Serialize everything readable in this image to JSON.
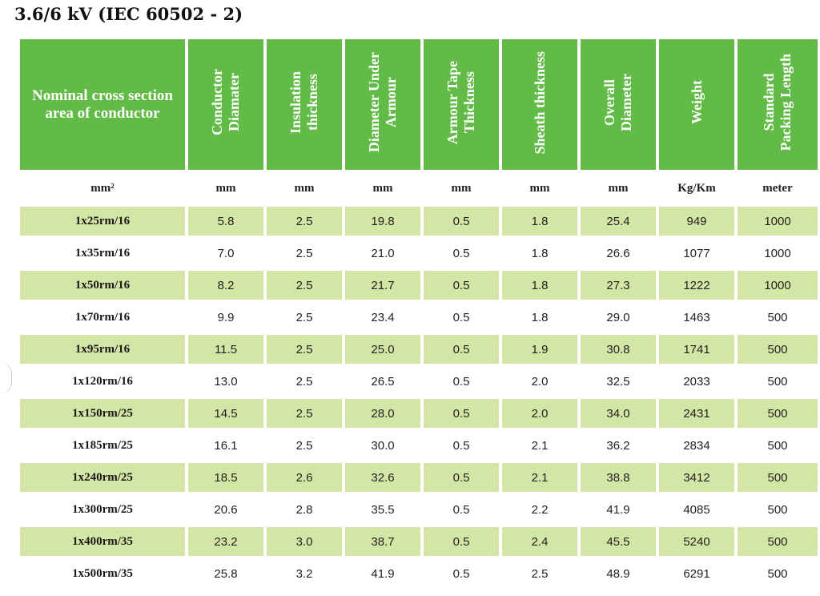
{
  "title": "3.6/6 kV (IEC 60502 - 2)",
  "table": {
    "headers": [
      "Nominal cross section area of conductor",
      "Conductor\nDiamater",
      "Insulation\nthickness",
      "Diameter Under\nArmour",
      "Armour Tape\nThickness",
      "Sheath thickness",
      "Overall\nDiameter",
      "Weight",
      "Standard\nPacking Length"
    ],
    "units": [
      "mm²",
      "mm",
      "mm",
      "mm",
      "mm",
      "mm",
      "mm",
      "Kg/Km",
      "meter"
    ],
    "rows": [
      [
        "1x25rm/16",
        "5.8",
        "2.5",
        "19.8",
        "0.5",
        "1.8",
        "25.4",
        "949",
        "1000"
      ],
      [
        "1x35rm/16",
        "7.0",
        "2.5",
        "21.0",
        "0.5",
        "1.8",
        "26.6",
        "1077",
        "1000"
      ],
      [
        "1x50rm/16",
        "8.2",
        "2.5",
        "21.7",
        "0.5",
        "1.8",
        "27.3",
        "1222",
        "1000"
      ],
      [
        "1x70rm/16",
        "9.9",
        "2.5",
        "23.4",
        "0.5",
        "1.8",
        "29.0",
        "1463",
        "500"
      ],
      [
        "1x95rm/16",
        "11.5",
        "2.5",
        "25.0",
        "0.5",
        "1.9",
        "30.8",
        "1741",
        "500"
      ],
      [
        "1x120rm/16",
        "13.0",
        "2.5",
        "26.5",
        "0.5",
        "2.0",
        "32.5",
        "2033",
        "500"
      ],
      [
        "1x150rm/25",
        "14.5",
        "2.5",
        "28.0",
        "0.5",
        "2.0",
        "34.0",
        "2431",
        "500"
      ],
      [
        "1x185rm/25",
        "16.1",
        "2.5",
        "30.0",
        "0.5",
        "2.1",
        "36.2",
        "2834",
        "500"
      ],
      [
        "1x240rm/25",
        "18.5",
        "2.6",
        "32.6",
        "0.5",
        "2.1",
        "38.8",
        "3412",
        "500"
      ],
      [
        "1x300rm/25",
        "20.6",
        "2.8",
        "35.5",
        "0.5",
        "2.2",
        "41.9",
        "4085",
        "500"
      ],
      [
        "1x400rm/35",
        "23.2",
        "3.0",
        "38.7",
        "0.5",
        "2.4",
        "45.5",
        "5240",
        "500"
      ],
      [
        "1x500rm/35",
        "25.8",
        "3.2",
        "41.9",
        "0.5",
        "2.5",
        "48.9",
        "6291",
        "500"
      ]
    ]
  },
  "colors": {
    "header_bg": "#62bb47",
    "header_text": "#ffffff",
    "row_shade": "#d3e6a5"
  }
}
